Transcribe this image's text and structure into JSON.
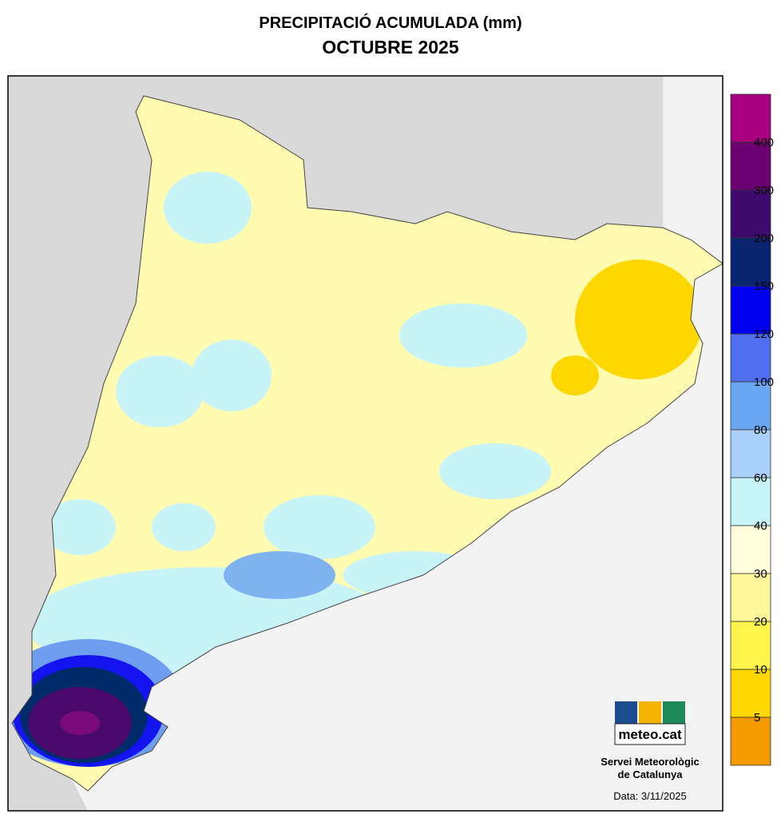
{
  "header": {
    "title": "PRECIPITACIÓ ACUMULADA (mm)",
    "subtitle": "OCTUBRE 2025"
  },
  "legend": {
    "colors": [
      "#a8007f",
      "#6b0070",
      "#3f0a6e",
      "#0a2470",
      "#0000f0",
      "#4f6ff0",
      "#6aa8f5",
      "#a8d0fa",
      "#c8f6f8",
      "#ffffdc",
      "#fff69a",
      "#fff54a",
      "#ffd700",
      "#f29a00"
    ],
    "labels": [
      400,
      300,
      200,
      150,
      120,
      100,
      80,
      60,
      40,
      30,
      20,
      10,
      5
    ]
  },
  "logo": {
    "text": "meteo.cat"
  },
  "footer": {
    "org_line1": "Servei Meteorològic",
    "org_line2": "de Catalunya",
    "date": "Data: 3/11/2025"
  }
}
